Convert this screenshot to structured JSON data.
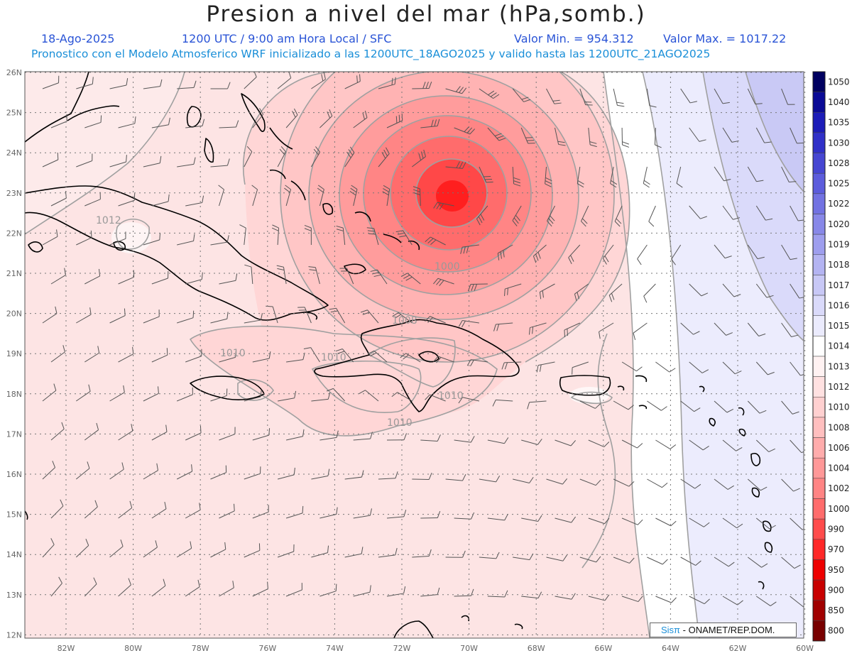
{
  "header": {
    "title": "Presion a nivel del mar (hPa,somb.)",
    "date": "18-Ago-2025",
    "time_line": "1200 UTC / 9:00 am Hora Local / SFC",
    "min_value": "Valor Min. = 954.312",
    "max_value": "Valor Max. = 1017.22",
    "model_line": "Pronostico con el Modelo Atmosferico WRF inicializado a las 1200UTC_18AGO2025 y valido hasta las  1200UTC_21AGO2025"
  },
  "map": {
    "lon_labels": [
      "82W",
      "80W",
      "78W",
      "76W",
      "74W",
      "72W",
      "70W",
      "68W",
      "66W",
      "64W",
      "62W",
      "60W"
    ],
    "lat_labels": [
      "26N",
      "25N",
      "24N",
      "23N",
      "22N",
      "21N",
      "20N",
      "19N",
      "18N",
      "17N",
      "16N",
      "15N",
      "14N",
      "13N",
      "12N"
    ],
    "isobar_labels": [
      "1012",
      "1010",
      "1010",
      "1010",
      "1010",
      "1008",
      "1000"
    ],
    "low_center": {
      "lon": -70.5,
      "lat": 23.0
    }
  },
  "legend": {
    "levels": [
      "1050",
      "1040",
      "1035",
      "1030",
      "1028",
      "1025",
      "1022",
      "1020",
      "1019",
      "1018",
      "1017",
      "1016",
      "1015",
      "1014",
      "1013",
      "1012",
      "1010",
      "1008",
      "1006",
      "1004",
      "1002",
      "1000",
      "990",
      "970",
      "950",
      "900",
      "850",
      "800"
    ],
    "colors": [
      "#000060",
      "#0a0a96",
      "#1c1cb8",
      "#3030c8",
      "#4646d2",
      "#5c5cdc",
      "#7272e2",
      "#8888e8",
      "#9e9eee",
      "#b4b4f2",
      "#c8c8f6",
      "#dadafa",
      "#ebebfd",
      "#ffffff",
      "#fff2f2",
      "#ffe1e1",
      "#ffd0d0",
      "#ffbfbf",
      "#ffacac",
      "#ff9898",
      "#ff8484",
      "#ff6c6c",
      "#ff4c4c",
      "#ff2828",
      "#ee0000",
      "#c80000",
      "#a00000",
      "#780000"
    ]
  },
  "credit": {
    "brand": "Sisπ",
    "org": " - ONAMET/REP.DOM."
  }
}
